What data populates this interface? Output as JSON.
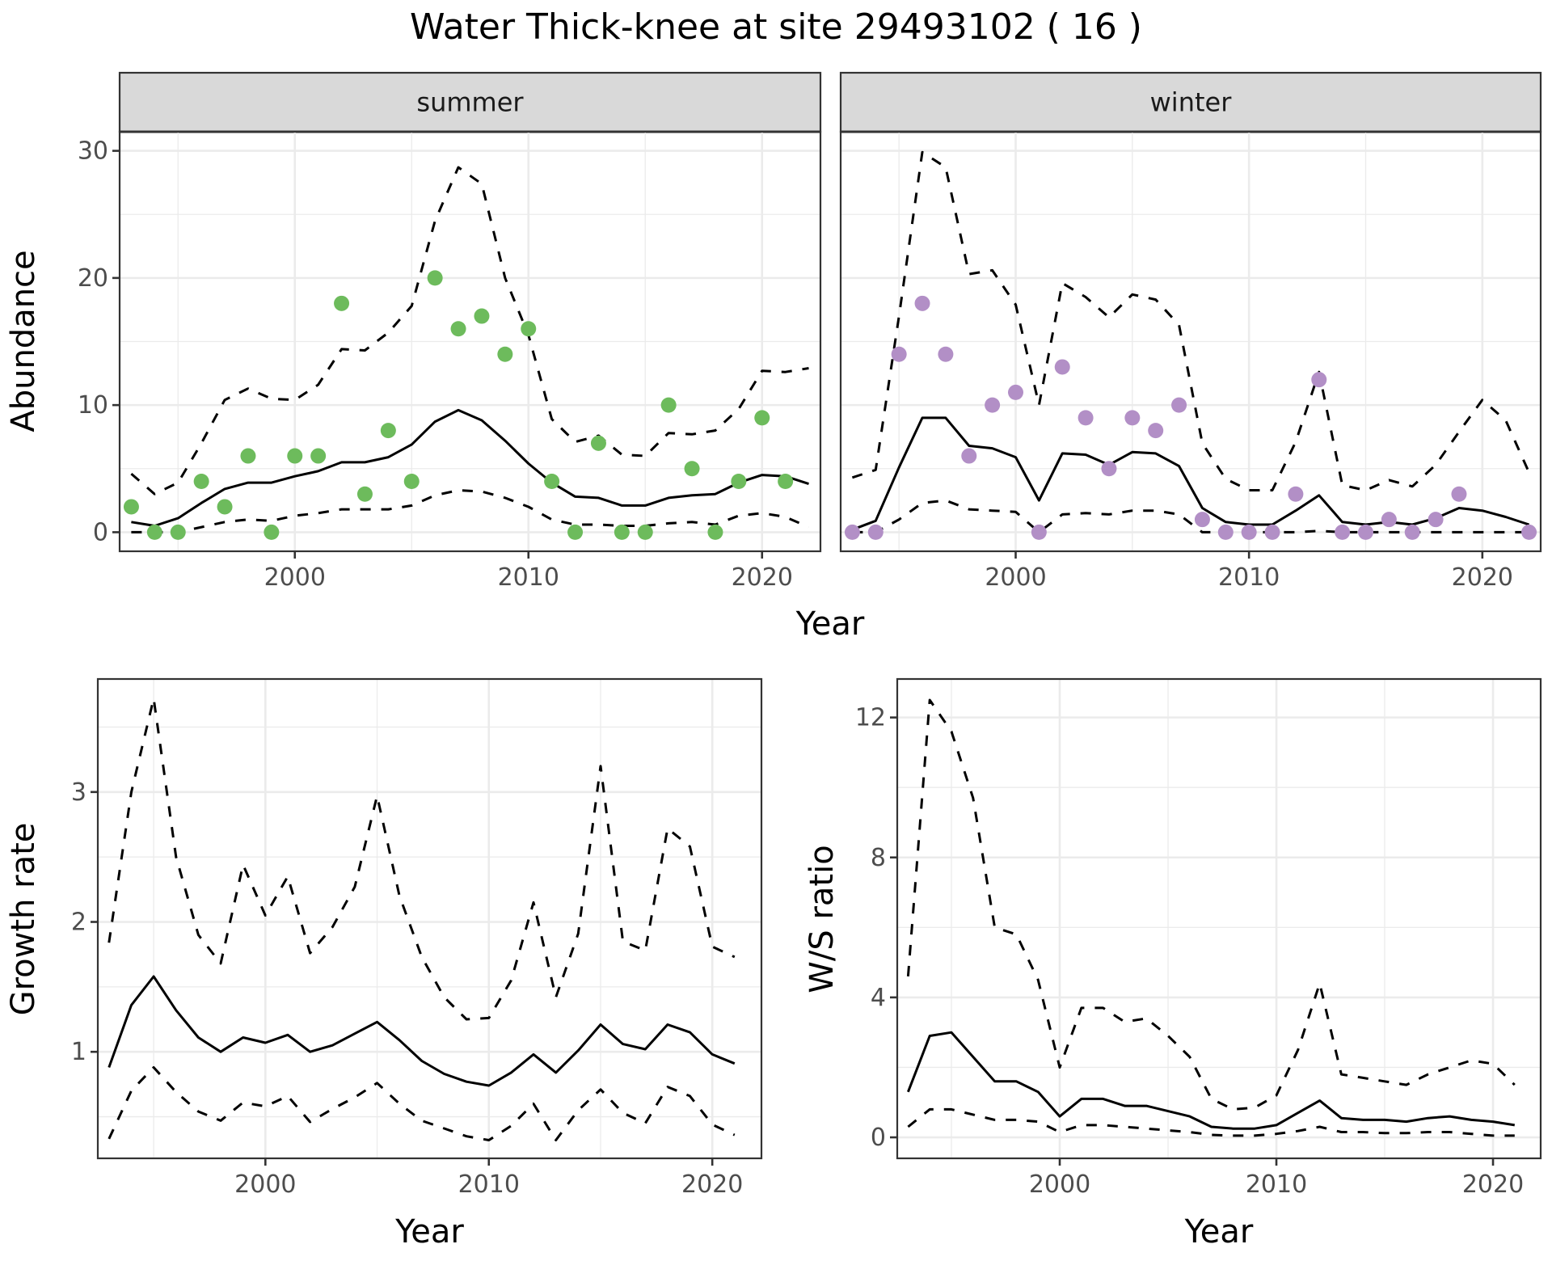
{
  "figure": {
    "title": "Water Thick-knee at site 29493102 ( 16 )"
  },
  "colors": {
    "summer_points": "#6dbb5c",
    "winter_points": "#b28fc6",
    "lines": "#000000",
    "strip_bg": "#d9d9d9",
    "grid": "#ebebeb"
  },
  "chart_data": [
    {
      "id": "abundance-summer",
      "type": "line",
      "facet": "summer",
      "xlabel": "Year",
      "ylabel": "Abundance",
      "xlim": [
        1992.5,
        2022.5
      ],
      "ylim": [
        -1.5,
        31.5
      ],
      "xticks": [
        2000,
        2010,
        2020
      ],
      "yticks": [
        0,
        10,
        20,
        30
      ],
      "grid": true,
      "points": {
        "name": "observed",
        "x": [
          1993,
          1994,
          1995,
          1996,
          1997,
          1998,
          1999,
          2000,
          2001,
          2002,
          2003,
          2004,
          2005,
          2006,
          2007,
          2008,
          2009,
          2010,
          2011,
          2012,
          2013,
          2014,
          2015,
          2016,
          2017,
          2018,
          2019,
          2020,
          2021
        ],
        "y": [
          2,
          0,
          0,
          4,
          2,
          6,
          0,
          6,
          6,
          18,
          3,
          8,
          4,
          20,
          16,
          17,
          14,
          16,
          4,
          0,
          7,
          0,
          0,
          10,
          5,
          0,
          4,
          9,
          4
        ]
      },
      "series": [
        {
          "name": "mean",
          "style": "solid",
          "x": [
            1993,
            1994,
            1995,
            1996,
            1997,
            1998,
            1999,
            2000,
            2001,
            2002,
            2003,
            2004,
            2005,
            2006,
            2007,
            2008,
            2009,
            2010,
            2011,
            2012,
            2013,
            2014,
            2015,
            2016,
            2017,
            2018,
            2019,
            2020,
            2021,
            2022
          ],
          "y": [
            0.8,
            0.5,
            1.1,
            2.3,
            3.4,
            3.9,
            3.9,
            4.4,
            4.8,
            5.5,
            5.5,
            5.9,
            6.9,
            8.7,
            9.6,
            8.8,
            7.2,
            5.4,
            3.9,
            2.8,
            2.7,
            2.1,
            2.1,
            2.7,
            2.9,
            3.0,
            3.9,
            4.5,
            4.4,
            3.8
          ]
        },
        {
          "name": "upper",
          "style": "dashed",
          "x": [
            1993,
            1994,
            1995,
            1996,
            1997,
            1998,
            1999,
            2000,
            2001,
            2002,
            2003,
            2004,
            2005,
            2006,
            2007,
            2008,
            2009,
            2010,
            2011,
            2012,
            2013,
            2014,
            2015,
            2016,
            2017,
            2018,
            2019,
            2020,
            2021,
            2022
          ],
          "y": [
            4.6,
            3.0,
            3.9,
            7.0,
            10.4,
            11.3,
            10.5,
            10.4,
            11.6,
            14.4,
            14.3,
            15.7,
            17.8,
            24.5,
            28.7,
            27.4,
            20.0,
            15.5,
            8.9,
            7.1,
            7.6,
            6.1,
            6.0,
            7.8,
            7.7,
            8.0,
            9.7,
            12.7,
            12.6,
            12.9
          ]
        },
        {
          "name": "lower",
          "style": "dashed",
          "x": [
            1993,
            1994,
            1995,
            1996,
            1997,
            1998,
            1999,
            2000,
            2001,
            2002,
            2003,
            2004,
            2005,
            2006,
            2007,
            2008,
            2009,
            2010,
            2011,
            2012,
            2013,
            2014,
            2015,
            2016,
            2017,
            2018,
            2019,
            2020,
            2021,
            2022
          ],
          "y": [
            0,
            0,
            0,
            0.4,
            0.8,
            1.0,
            0.9,
            1.3,
            1.5,
            1.8,
            1.8,
            1.8,
            2.1,
            2.9,
            3.3,
            3.2,
            2.7,
            2.0,
            1.0,
            0.6,
            0.6,
            0.5,
            0.5,
            0.7,
            0.8,
            0.6,
            1.3,
            1.5,
            1.2,
            0.4
          ]
        }
      ]
    },
    {
      "id": "abundance-winter",
      "type": "line",
      "facet": "winter",
      "xlabel": "Year",
      "ylabel": "Abundance",
      "xlim": [
        1992.5,
        2022.5
      ],
      "ylim": [
        -1.5,
        31.5
      ],
      "xticks": [
        2000,
        2010,
        2020
      ],
      "yticks": [
        0,
        10,
        20,
        30
      ],
      "grid": true,
      "points": {
        "name": "observed",
        "x": [
          1993,
          1994,
          1995,
          1996,
          1997,
          1998,
          1999,
          2000,
          2001,
          2002,
          2003,
          2004,
          2005,
          2006,
          2007,
          2008,
          2009,
          2010,
          2011,
          2012,
          2013,
          2014,
          2015,
          2016,
          2017,
          2018,
          2019,
          2022
        ],
        "y": [
          0,
          0,
          14,
          18,
          14,
          6,
          10,
          11,
          0,
          13,
          9,
          5,
          9,
          8,
          10,
          1,
          0,
          0,
          0,
          3,
          12,
          0,
          0,
          1,
          0,
          1,
          3,
          0
        ]
      },
      "series": [
        {
          "name": "mean",
          "style": "solid",
          "x": [
            1993,
            1994,
            1995,
            1996,
            1997,
            1998,
            1999,
            2000,
            2001,
            2002,
            2003,
            2004,
            2005,
            2006,
            2007,
            2008,
            2009,
            2010,
            2011,
            2012,
            2013,
            2014,
            2015,
            2016,
            2017,
            2018,
            2019,
            2020,
            2021,
            2022
          ],
          "y": [
            0.2,
            0.9,
            5.1,
            9.0,
            9.0,
            6.8,
            6.6,
            5.9,
            2.5,
            6.2,
            6.1,
            5.3,
            6.3,
            6.2,
            5.2,
            1.9,
            0.8,
            0.6,
            0.6,
            1.7,
            2.9,
            0.8,
            0.6,
            0.8,
            0.6,
            1.1,
            1.9,
            1.7,
            1.2,
            0.6
          ]
        },
        {
          "name": "upper",
          "style": "dashed",
          "x": [
            1993,
            1994,
            1995,
            1996,
            1997,
            1998,
            1999,
            2000,
            2001,
            2002,
            2003,
            2004,
            2005,
            2006,
            2007,
            2008,
            2009,
            2010,
            2011,
            2012,
            2013,
            2014,
            2015,
            2016,
            2017,
            2018,
            2019,
            2020,
            2021,
            2022
          ],
          "y": [
            4.3,
            4.9,
            17.0,
            29.9,
            28.7,
            20.3,
            20.6,
            17.9,
            10.0,
            19.6,
            18.5,
            16.9,
            18.7,
            18.3,
            16.3,
            7.0,
            4.2,
            3.3,
            3.3,
            7.1,
            12.6,
            3.7,
            3.3,
            4.1,
            3.6,
            5.3,
            7.9,
            10.4,
            8.8,
            4.7
          ]
        },
        {
          "name": "lower",
          "style": "dashed",
          "x": [
            1993,
            1994,
            1995,
            1996,
            1997,
            1998,
            1999,
            2000,
            2001,
            2002,
            2003,
            2004,
            2005,
            2006,
            2007,
            2008,
            2009,
            2010,
            2011,
            2012,
            2013,
            2014,
            2015,
            2016,
            2017,
            2018,
            2019,
            2020,
            2021,
            2022
          ],
          "y": [
            0,
            0,
            1.0,
            2.3,
            2.5,
            1.8,
            1.7,
            1.6,
            0,
            1.4,
            1.5,
            1.4,
            1.7,
            1.7,
            1.4,
            0,
            0,
            0,
            0,
            0,
            0.1,
            0,
            0,
            0,
            0,
            0,
            0,
            0,
            0,
            0
          ]
        }
      ]
    },
    {
      "id": "growth-rate",
      "type": "line",
      "xlabel": "Year",
      "ylabel": "Growth rate",
      "xlim": [
        1992.5,
        2022.2
      ],
      "ylim": [
        0.18,
        3.87
      ],
      "xticks": [
        2000,
        2010,
        2020
      ],
      "yticks": [
        1,
        2,
        3
      ],
      "grid": true,
      "series": [
        {
          "name": "mean",
          "style": "solid",
          "x": [
            1993,
            1994,
            1995,
            1996,
            1997,
            1998,
            1999,
            2000,
            2001,
            2002,
            2003,
            2004,
            2005,
            2006,
            2007,
            2008,
            2009,
            2010,
            2011,
            2012,
            2013,
            2014,
            2015,
            2016,
            2017,
            2018,
            2019,
            2020,
            2021
          ],
          "y": [
            0.88,
            1.36,
            1.58,
            1.32,
            1.11,
            1.0,
            1.11,
            1.07,
            1.13,
            1.0,
            1.05,
            1.14,
            1.23,
            1.09,
            0.93,
            0.83,
            0.77,
            0.74,
            0.84,
            0.98,
            0.84,
            1.01,
            1.21,
            1.06,
            1.02,
            1.21,
            1.15,
            0.98,
            0.91
          ]
        },
        {
          "name": "upper",
          "style": "dashed",
          "x": [
            1993,
            1994,
            1995,
            1996,
            1997,
            1998,
            1999,
            2000,
            2001,
            2002,
            2003,
            2004,
            2005,
            2006,
            2007,
            2008,
            2009,
            2010,
            2011,
            2012,
            2013,
            2014,
            2015,
            2016,
            2017,
            2018,
            2019,
            2020,
            2021
          ],
          "y": [
            1.84,
            3.0,
            3.72,
            2.5,
            1.9,
            1.68,
            2.44,
            2.05,
            2.35,
            1.76,
            1.96,
            2.27,
            2.97,
            2.2,
            1.73,
            1.42,
            1.25,
            1.26,
            1.55,
            2.15,
            1.42,
            1.91,
            3.2,
            1.85,
            1.78,
            2.72,
            2.58,
            1.81,
            1.73
          ]
        },
        {
          "name": "lower",
          "style": "dashed",
          "x": [
            1993,
            1994,
            1995,
            1996,
            1997,
            1998,
            1999,
            2000,
            2001,
            2002,
            2003,
            2004,
            2005,
            2006,
            2007,
            2008,
            2009,
            2010,
            2011,
            2012,
            2013,
            2014,
            2015,
            2016,
            2017,
            2018,
            2019,
            2020,
            2021
          ],
          "y": [
            0.33,
            0.7,
            0.88,
            0.69,
            0.54,
            0.47,
            0.61,
            0.58,
            0.66,
            0.46,
            0.56,
            0.65,
            0.76,
            0.6,
            0.47,
            0.41,
            0.35,
            0.32,
            0.43,
            0.6,
            0.32,
            0.55,
            0.71,
            0.53,
            0.45,
            0.73,
            0.66,
            0.44,
            0.36
          ]
        }
      ]
    },
    {
      "id": "ws-ratio",
      "type": "line",
      "xlabel": "Year",
      "ylabel": "W/S ratio",
      "xlim": [
        1992.5,
        2022.2
      ],
      "ylim": [
        -0.6,
        13.1
      ],
      "xticks": [
        2000,
        2010,
        2020
      ],
      "yticks": [
        0,
        4,
        8,
        12
      ],
      "grid": true,
      "series": [
        {
          "name": "mean",
          "style": "solid",
          "x": [
            1993,
            1994,
            1995,
            1996,
            1997,
            1998,
            1999,
            2000,
            2001,
            2002,
            2003,
            2004,
            2005,
            2006,
            2007,
            2008,
            2009,
            2010,
            2011,
            2012,
            2013,
            2014,
            2015,
            2016,
            2017,
            2018,
            2019,
            2020,
            2021
          ],
          "y": [
            1.3,
            2.9,
            3.0,
            2.3,
            1.6,
            1.6,
            1.3,
            0.6,
            1.1,
            1.1,
            0.9,
            0.9,
            0.75,
            0.6,
            0.3,
            0.25,
            0.25,
            0.35,
            0.7,
            1.05,
            0.55,
            0.5,
            0.5,
            0.45,
            0.55,
            0.6,
            0.5,
            0.45,
            0.35
          ]
        },
        {
          "name": "upper",
          "style": "dashed",
          "x": [
            1993,
            1994,
            1995,
            1996,
            1997,
            1998,
            1999,
            2000,
            2001,
            2002,
            2003,
            2004,
            2005,
            2006,
            2007,
            2008,
            2009,
            2010,
            2011,
            2012,
            2013,
            2014,
            2015,
            2016,
            2017,
            2018,
            2019,
            2020,
            2021
          ],
          "y": [
            4.6,
            12.5,
            11.6,
            9.7,
            6.0,
            5.8,
            4.5,
            2.0,
            3.7,
            3.7,
            3.3,
            3.4,
            2.9,
            2.3,
            1.1,
            0.8,
            0.85,
            1.2,
            2.5,
            4.4,
            1.8,
            1.7,
            1.6,
            1.5,
            1.8,
            2.0,
            2.2,
            2.1,
            1.5
          ]
        },
        {
          "name": "lower",
          "style": "dashed",
          "x": [
            1993,
            1994,
            1995,
            1996,
            1997,
            1998,
            1999,
            2000,
            2001,
            2002,
            2003,
            2004,
            2005,
            2006,
            2007,
            2008,
            2009,
            2010,
            2011,
            2012,
            2013,
            2014,
            2015,
            2016,
            2017,
            2018,
            2019,
            2020,
            2021
          ],
          "y": [
            0.3,
            0.8,
            0.8,
            0.65,
            0.5,
            0.5,
            0.45,
            0.15,
            0.35,
            0.35,
            0.3,
            0.25,
            0.2,
            0.15,
            0.07,
            0.05,
            0.05,
            0.1,
            0.18,
            0.3,
            0.15,
            0.15,
            0.12,
            0.12,
            0.15,
            0.15,
            0.1,
            0.05,
            0.05
          ]
        }
      ]
    }
  ]
}
